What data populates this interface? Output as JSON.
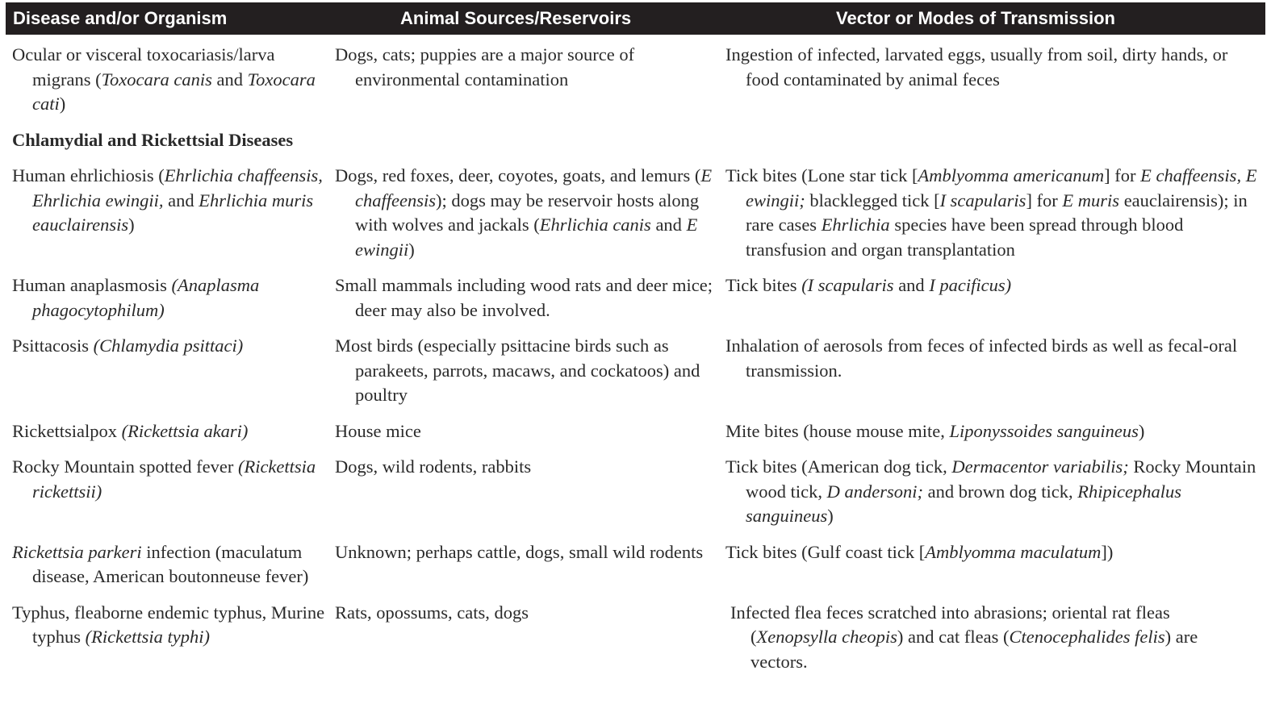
{
  "header": {
    "col1": "Disease and/or Organism",
    "col2": "Animal Sources/Reservoirs",
    "col3": "Vector or Modes of Transmission"
  },
  "rows": [
    {
      "disease": [
        "Ocular or visceral toxocariasis/larva migrans (",
        {
          "i": "Toxocara canis"
        },
        " and ",
        {
          "i": "Toxocara cati"
        },
        ")"
      ],
      "sources": [
        "Dogs, cats; puppies are a major source of environmental contamination"
      ],
      "transmission": [
        "Ingestion of infected, larvated eggs, usually from soil, dirty hands, or food contaminated by animal feces"
      ]
    },
    {
      "section": "Chlamydial and Rickettsial Diseases"
    },
    {
      "disease": [
        "Human ehrlichiosis (",
        {
          "i": "Ehrlichia chaffeensis, Ehrlichia ewingii,"
        },
        " and ",
        {
          "i": "Ehrlichia muris eauclairensis"
        },
        ")"
      ],
      "sources": [
        "Dogs, red foxes, deer, coyotes, goats, and lemurs (",
        {
          "i": "E chaffeensis"
        },
        "); dogs may be reservoir hosts along with wolves and jackals (",
        {
          "i": "Ehrlichia canis"
        },
        " and ",
        {
          "i": "E ewingii"
        },
        ")"
      ],
      "transmission": [
        "Tick bites (Lone star tick [",
        {
          "i": "Amblyomma americanum"
        },
        "] for ",
        {
          "i": "E chaffeensis, E ewingii;"
        },
        " blacklegged tick [",
        {
          "i": "I scapularis"
        },
        "] for ",
        {
          "i": "E muris"
        },
        " eauclairensis); in rare cases ",
        {
          "i": "Ehrlichia"
        },
        " species have been spread through blood transfusion and organ transplantation"
      ]
    },
    {
      "disease": [
        "Human anaplasmosis ",
        {
          "i": "(Anaplasma phagocytophilum)"
        }
      ],
      "sources": [
        "Small mammals including wood rats and deer mice; deer may also be involved."
      ],
      "transmission": [
        "Tick bites ",
        {
          "i": "(I scapularis"
        },
        " and ",
        {
          "i": "I pacificus)"
        }
      ]
    },
    {
      "disease": [
        "Psittacosis ",
        {
          "i": "(Chlamydia psittaci)"
        }
      ],
      "sources": [
        "Most birds (especially psittacine birds such as parakeets, parrots, macaws, and cockatoos) and poultry"
      ],
      "transmission": [
        "Inhalation of aerosols from feces of infected birds as well as fecal-oral transmission."
      ]
    },
    {
      "disease": [
        "Rickettsialpox ",
        {
          "i": "(Rickettsia akari)"
        }
      ],
      "sources": [
        "House mice"
      ],
      "transmission": [
        "Mite bites (house mouse mite, ",
        {
          "i": "Liponyssoides sanguineus"
        },
        ")"
      ]
    },
    {
      "disease": [
        "Rocky Mountain spotted fever ",
        {
          "i": "(Rickettsia rickettsii)"
        }
      ],
      "sources": [
        "Dogs, wild rodents, rabbits"
      ],
      "transmission": [
        "Tick bites (American dog tick, ",
        {
          "i": "Dermacentor variabilis;"
        },
        " Rocky Mountain wood tick, ",
        {
          "i": "D andersoni;"
        },
        " and brown dog tick, ",
        {
          "i": "Rhipicephalus sanguineus"
        },
        ")"
      ]
    },
    {
      "disease": [
        {
          "i": "Rickettsia parkeri"
        },
        " infection (maculatum disease, American boutonneuse fever)"
      ],
      "sources": [
        "Unknown; perhaps cattle, dogs, small wild rodents"
      ],
      "transmission": [
        "Tick bites (Gulf coast tick [",
        {
          "i": "Amblyomma maculatum"
        },
        "])"
      ]
    },
    {
      "disease": [
        "Typhus, fleaborne endemic typhus, Murine typhus ",
        {
          "i": "(Rickettsia typhi)"
        }
      ],
      "sources": [
        "Rats, opossums, cats, dogs"
      ],
      "transmission": [
        "Infected flea feces scratched into abrasions; oriental rat fleas (",
        {
          "i": "Xenopsylla cheopis"
        },
        ") and cat fleas (",
        {
          "i": "Ctenocephalides felis"
        },
        ") are vectors."
      ]
    }
  ]
}
